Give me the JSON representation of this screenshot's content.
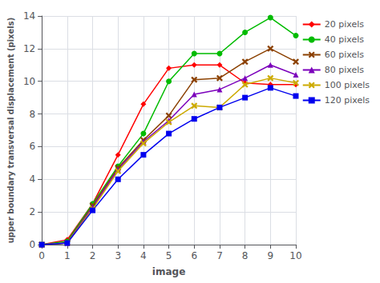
{
  "chart_data": {
    "type": "line",
    "xlabel": "image",
    "ylabel": "upper boundary transversal displacement (pixels)",
    "x": [
      0,
      1,
      2,
      3,
      4,
      5,
      6,
      7,
      8,
      9,
      10
    ],
    "series": [
      {
        "name": "20 pixels",
        "color": "#ff0000",
        "marker": "diamond",
        "values": [
          0,
          0.3,
          2.5,
          5.5,
          8.6,
          10.8,
          11.0,
          11.0,
          9.9,
          9.8,
          9.8
        ]
      },
      {
        "name": "40 pixels",
        "color": "#00bb00",
        "marker": "circle",
        "values": [
          0,
          0.2,
          2.5,
          4.8,
          6.8,
          10.0,
          11.7,
          11.7,
          13.0,
          13.9,
          12.8
        ]
      },
      {
        "name": "60 pixels",
        "color": "#8B4000",
        "marker": "x",
        "values": [
          0,
          0.1,
          2.4,
          4.7,
          6.4,
          7.9,
          10.1,
          10.2,
          11.2,
          12.0,
          11.2
        ]
      },
      {
        "name": "80 pixels",
        "color": "#7B00BB",
        "marker": "triangle",
        "values": [
          0,
          0.1,
          2.3,
          4.6,
          6.3,
          7.6,
          9.2,
          9.5,
          10.2,
          11.0,
          10.4
        ]
      },
      {
        "name": "100 pixels",
        "color": "#ccaa00",
        "marker": "x",
        "values": [
          0,
          0.1,
          2.2,
          4.5,
          6.2,
          7.5,
          8.5,
          8.4,
          9.8,
          10.2,
          9.9
        ]
      },
      {
        "name": "120 pixels",
        "color": "#0000ee",
        "marker": "square",
        "values": [
          0,
          0.1,
          2.1,
          4.0,
          5.5,
          6.8,
          7.7,
          8.4,
          9.0,
          9.6,
          9.1
        ]
      }
    ],
    "xlim": [
      0,
      10
    ],
    "ylim": [
      0,
      14
    ],
    "xticks": [
      0,
      1,
      2,
      3,
      4,
      5,
      6,
      7,
      8,
      9,
      10
    ],
    "yticks": [
      0,
      2,
      4,
      6,
      8,
      10,
      12,
      14
    ],
    "grid": true,
    "legend": "upper right"
  }
}
